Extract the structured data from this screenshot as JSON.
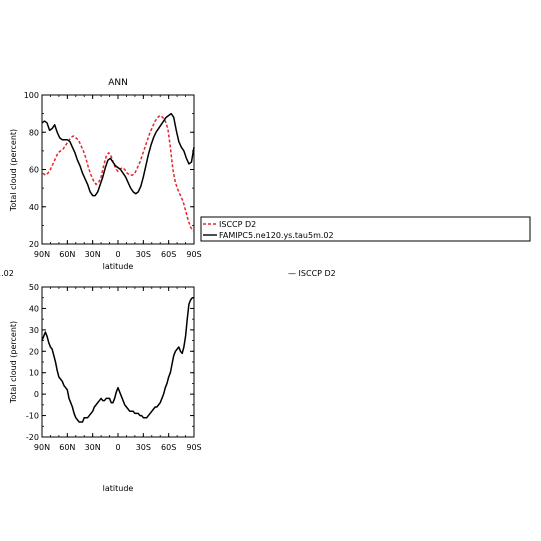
{
  "chart_data": [
    {
      "type": "line",
      "title": "ANN",
      "xlabel": "latitude",
      "ylabel": "Total cloud (percent)",
      "xlim": [
        -90,
        90
      ],
      "ylim": [
        20,
        100
      ],
      "x_tick_values": [
        -90,
        -60,
        -30,
        0,
        30,
        60,
        90
      ],
      "x_tick_labels": [
        "90N",
        "60N",
        "30N",
        "0",
        "30S",
        "60S",
        "90S"
      ],
      "y_tick_values": [
        20,
        40,
        60,
        80,
        100
      ],
      "y_tick_labels": [
        "20",
        "40",
        "60",
        "80",
        "100"
      ],
      "legend_placement": "right",
      "series": [
        {
          "name": "ISCCP D2",
          "color": "#e8262d",
          "style": "dashed",
          "x": [
            -89,
            -86,
            -83,
            -80,
            -77,
            -74,
            -71,
            -68,
            -65,
            -62,
            -59,
            -56,
            -53,
            -50,
            -47,
            -44,
            -41,
            -38,
            -35,
            -32,
            -29,
            -26,
            -23,
            -20,
            -17,
            -14,
            -11,
            -8,
            -5,
            -2,
            0,
            2,
            5,
            8,
            11,
            14,
            17,
            20,
            23,
            26,
            29,
            32,
            35,
            38,
            41,
            44,
            47,
            50,
            53,
            56,
            59,
            62,
            65,
            68,
            71,
            74,
            77,
            80,
            83,
            86,
            89
          ],
          "y": [
            58,
            57,
            58,
            60,
            63,
            66,
            69,
            70,
            71,
            73,
            75,
            77,
            78,
            77,
            76,
            73,
            70,
            66,
            61,
            57,
            54,
            52,
            53,
            56,
            62,
            67,
            69,
            67,
            63,
            60,
            59,
            60,
            61,
            60,
            58,
            57,
            57,
            58,
            61,
            64,
            68,
            72,
            76,
            80,
            83,
            86,
            88,
            89,
            88,
            86,
            82,
            72,
            60,
            53,
            49,
            46,
            43,
            38,
            33,
            29,
            27
          ]
        },
        {
          "name": "FAMIPC5.ne120.ys.tau5m.02",
          "color": "#000000",
          "style": "solid",
          "x": [
            -90,
            -87,
            -84,
            -81,
            -78,
            -75,
            -72,
            -69,
            -66,
            -63,
            -60,
            -57,
            -54,
            -51,
            -48,
            -45,
            -42,
            -39,
            -36,
            -33,
            -30,
            -27,
            -24,
            -21,
            -18,
            -15,
            -12,
            -9,
            -6,
            -3,
            0,
            3,
            6,
            9,
            12,
            15,
            18,
            21,
            24,
            27,
            30,
            33,
            36,
            39,
            42,
            45,
            48,
            51,
            54,
            57,
            60,
            63,
            66,
            69,
            72,
            75,
            78,
            81,
            84,
            87,
            90
          ],
          "y": [
            85,
            86,
            85,
            81,
            82,
            84,
            80,
            77,
            76,
            76,
            76,
            75,
            72,
            69,
            65,
            62,
            58,
            55,
            52,
            48,
            46,
            46,
            48,
            52,
            56,
            61,
            65,
            66,
            64,
            62,
            61,
            60,
            58,
            56,
            53,
            50,
            48,
            47,
            48,
            51,
            56,
            62,
            68,
            73,
            77,
            80,
            82,
            84,
            86,
            88,
            89,
            90,
            88,
            81,
            75,
            72,
            70,
            66,
            63,
            64,
            72
          ]
        }
      ]
    },
    {
      "type": "line",
      "title": "",
      "xlabel": "latitude",
      "ylabel": "Total cloud (percent)",
      "xlim": [
        -90,
        90
      ],
      "ylim": [
        -20,
        50
      ],
      "x_tick_values": [
        -90,
        -60,
        -30,
        0,
        30,
        60,
        90
      ],
      "x_tick_labels": [
        "90N",
        "60N",
        "30N",
        "0",
        "30S",
        "60S",
        "90S"
      ],
      "y_tick_values": [
        -20,
        -10,
        0,
        10,
        20,
        30,
        40,
        50
      ],
      "y_tick_labels": [
        "-20",
        "-10",
        "0",
        "10",
        "20",
        "30",
        "40",
        "50"
      ],
      "series": [
        {
          "name": "",
          "color": "#000000",
          "style": "solid",
          "x": [
            -90,
            -88,
            -86,
            -84,
            -82,
            -80,
            -78,
            -76,
            -74,
            -72,
            -70,
            -68,
            -66,
            -64,
            -62,
            -60,
            -58,
            -56,
            -54,
            -52,
            -50,
            -48,
            -46,
            -44,
            -42,
            -40,
            -38,
            -36,
            -34,
            -32,
            -30,
            -28,
            -26,
            -24,
            -22,
            -20,
            -18,
            -16,
            -14,
            -12,
            -10,
            -8,
            -6,
            -4,
            -2,
            0,
            2,
            4,
            6,
            8,
            10,
            12,
            14,
            16,
            18,
            20,
            22,
            24,
            26,
            28,
            30,
            32,
            34,
            36,
            38,
            40,
            42,
            44,
            46,
            48,
            50,
            52,
            54,
            56,
            58,
            60,
            62,
            64,
            66,
            68,
            70,
            72,
            74,
            76,
            78,
            80,
            82,
            84,
            86,
            88,
            90
          ],
          "y": [
            25,
            27,
            29,
            27,
            24,
            22,
            21,
            18,
            15,
            11,
            8,
            7,
            6,
            4,
            3,
            2,
            -2,
            -4,
            -6,
            -9,
            -11,
            -12,
            -13,
            -13,
            -13,
            -11,
            -11,
            -11,
            -10,
            -9,
            -8,
            -6,
            -5,
            -4,
            -3,
            -2,
            -3,
            -3,
            -2,
            -2,
            -2,
            -4,
            -4,
            -2,
            1,
            3,
            1,
            -1,
            -3,
            -5,
            -6,
            -7,
            -8,
            -8,
            -8,
            -9,
            -9,
            -9,
            -10,
            -10,
            -11,
            -11,
            -11,
            -10,
            -9,
            -8,
            -7,
            -6,
            -6,
            -5,
            -4,
            -2,
            0,
            3,
            5,
            8,
            10,
            14,
            18,
            20,
            21,
            22,
            20,
            19,
            22,
            27,
            35,
            42,
            44,
            45,
            45
          ]
        }
      ]
    }
  ],
  "legend": {
    "items": [
      {
        "label": "ISCCP D2",
        "color": "#e8262d",
        "style": "dashed"
      },
      {
        "label": "FAMIPC5.ne120.ys.tau5m.02",
        "color": "#000000",
        "style": "solid"
      }
    ]
  },
  "clipped_text": {
    "left_fragment": "1.02",
    "center_fragment": "— ISCCP D2"
  }
}
